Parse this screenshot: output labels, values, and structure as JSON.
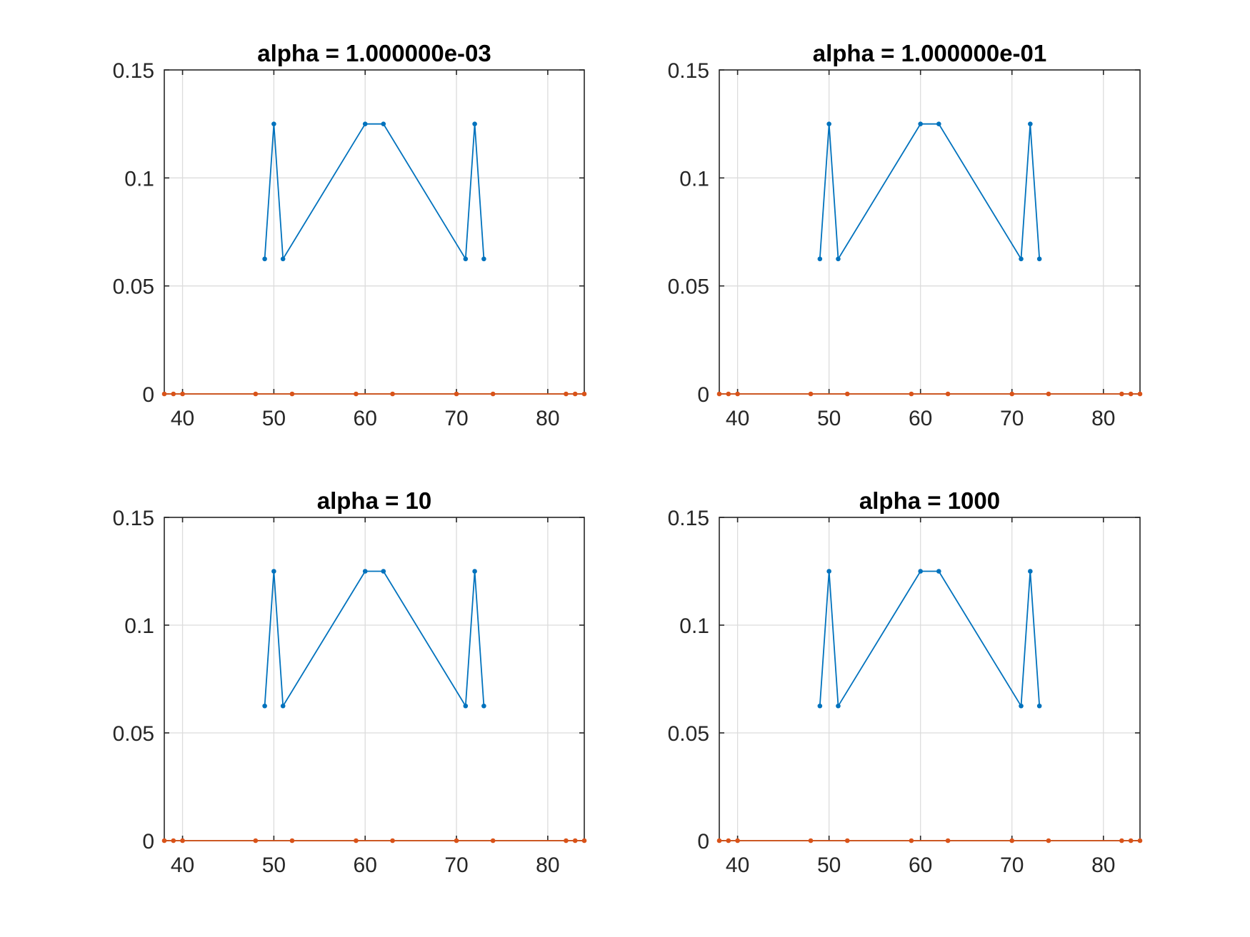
{
  "chart_data": [
    {
      "type": "line",
      "title": "alpha = 1.000000e-03",
      "xlabel": "",
      "ylabel": "",
      "xlim": [
        38,
        84
      ],
      "ylim": [
        0,
        0.15
      ],
      "xticks": [
        40,
        50,
        60,
        70,
        80
      ],
      "xtick_labels": [
        "40",
        "50",
        "60",
        "70",
        "80"
      ],
      "yticks": [
        0,
        0.05,
        0.1,
        0.15
      ],
      "ytick_labels": [
        "0",
        "0.05",
        "0.1",
        "0.15"
      ],
      "grid": true,
      "series": [
        {
          "color": "#0072BD",
          "x": [
            49,
            50,
            51,
            60,
            62,
            71,
            72,
            73
          ],
          "y": [
            0.0625,
            0.125,
            0.0625,
            0.125,
            0.125,
            0.0625,
            0.125,
            0.0625
          ]
        },
        {
          "color": "#D95319",
          "x": [
            38,
            39,
            40,
            48,
            52,
            59,
            63,
            70,
            74,
            82,
            83,
            84
          ],
          "y": [
            0,
            0,
            0,
            0,
            0,
            0,
            0,
            0,
            0,
            0,
            0,
            0
          ]
        }
      ]
    },
    {
      "type": "line",
      "title": "alpha = 1.000000e-01",
      "xlabel": "",
      "ylabel": "",
      "xlim": [
        38,
        84
      ],
      "ylim": [
        0,
        0.15
      ],
      "xticks": [
        40,
        50,
        60,
        70,
        80
      ],
      "xtick_labels": [
        "40",
        "50",
        "60",
        "70",
        "80"
      ],
      "yticks": [
        0,
        0.05,
        0.1,
        0.15
      ],
      "ytick_labels": [
        "0",
        "0.05",
        "0.1",
        "0.15"
      ],
      "grid": true,
      "series": [
        {
          "color": "#0072BD",
          "x": [
            49,
            50,
            51,
            60,
            62,
            71,
            72,
            73
          ],
          "y": [
            0.0625,
            0.125,
            0.0625,
            0.125,
            0.125,
            0.0625,
            0.125,
            0.0625
          ]
        },
        {
          "color": "#D95319",
          "x": [
            38,
            39,
            40,
            48,
            52,
            59,
            63,
            70,
            74,
            82,
            83,
            84
          ],
          "y": [
            0,
            0,
            0,
            0,
            0,
            0,
            0,
            0,
            0,
            0,
            0,
            0
          ]
        }
      ]
    },
    {
      "type": "line",
      "title": "alpha = 10",
      "xlabel": "",
      "ylabel": "",
      "xlim": [
        38,
        84
      ],
      "ylim": [
        0,
        0.15
      ],
      "xticks": [
        40,
        50,
        60,
        70,
        80
      ],
      "xtick_labels": [
        "40",
        "50",
        "60",
        "70",
        "80"
      ],
      "yticks": [
        0,
        0.05,
        0.1,
        0.15
      ],
      "ytick_labels": [
        "0",
        "0.05",
        "0.1",
        "0.15"
      ],
      "grid": true,
      "series": [
        {
          "color": "#0072BD",
          "x": [
            49,
            50,
            51,
            60,
            62,
            71,
            72,
            73
          ],
          "y": [
            0.0625,
            0.125,
            0.0625,
            0.125,
            0.125,
            0.0625,
            0.125,
            0.0625
          ]
        },
        {
          "color": "#D95319",
          "x": [
            38,
            39,
            40,
            48,
            52,
            59,
            63,
            70,
            74,
            82,
            83,
            84
          ],
          "y": [
            0,
            0,
            0,
            0,
            0,
            0,
            0,
            0,
            0,
            0,
            0,
            0
          ]
        }
      ]
    },
    {
      "type": "line",
      "title": "alpha = 1000",
      "xlabel": "",
      "ylabel": "",
      "xlim": [
        38,
        84
      ],
      "ylim": [
        0,
        0.15
      ],
      "xticks": [
        40,
        50,
        60,
        70,
        80
      ],
      "xtick_labels": [
        "40",
        "50",
        "60",
        "70",
        "80"
      ],
      "yticks": [
        0,
        0.05,
        0.1,
        0.15
      ],
      "ytick_labels": [
        "0",
        "0.05",
        "0.1",
        "0.15"
      ],
      "grid": true,
      "series": [
        {
          "color": "#0072BD",
          "x": [
            49,
            50,
            51,
            60,
            62,
            71,
            72,
            73
          ],
          "y": [
            0.0625,
            0.125,
            0.0625,
            0.125,
            0.125,
            0.0625,
            0.125,
            0.0625
          ]
        },
        {
          "color": "#D95319",
          "x": [
            38,
            39,
            40,
            48,
            52,
            59,
            63,
            70,
            74,
            82,
            83,
            84
          ],
          "y": [
            0,
            0,
            0,
            0,
            0,
            0,
            0,
            0,
            0,
            0,
            0,
            0
          ]
        }
      ]
    }
  ]
}
